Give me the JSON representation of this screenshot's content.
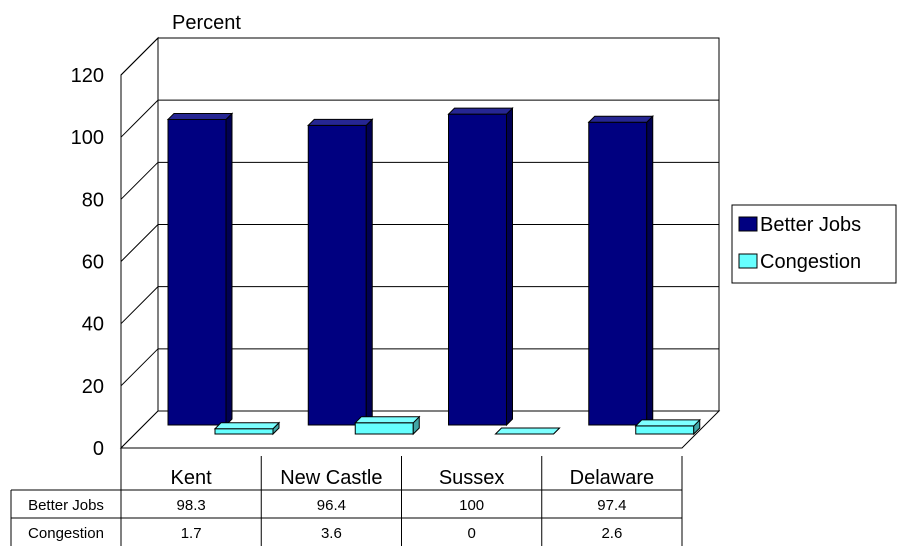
{
  "chart_data": {
    "type": "bar",
    "ylabel": "Percent",
    "ylim": [
      0,
      120
    ],
    "yticks": [
      0,
      20,
      40,
      60,
      80,
      100,
      120
    ],
    "categories": [
      "Kent",
      "New Castle",
      "Sussex",
      "Delaware"
    ],
    "series": [
      {
        "name": "Better Jobs",
        "values": [
          98.3,
          96.4,
          100,
          97.4
        ],
        "color": "#000080"
      },
      {
        "name": "Congestion",
        "values": [
          1.7,
          3.6,
          0,
          2.6
        ],
        "color": "#66ffff"
      }
    ],
    "table": {
      "rows": [
        {
          "label": "Better Jobs",
          "cells": [
            "98.3",
            "96.4",
            "100",
            "97.4"
          ]
        },
        {
          "label": "Congestion",
          "cells": [
            "1.7",
            "3.6",
            "0",
            "2.6"
          ]
        }
      ]
    },
    "legend_position": "right",
    "grid": true,
    "style": "3d"
  }
}
